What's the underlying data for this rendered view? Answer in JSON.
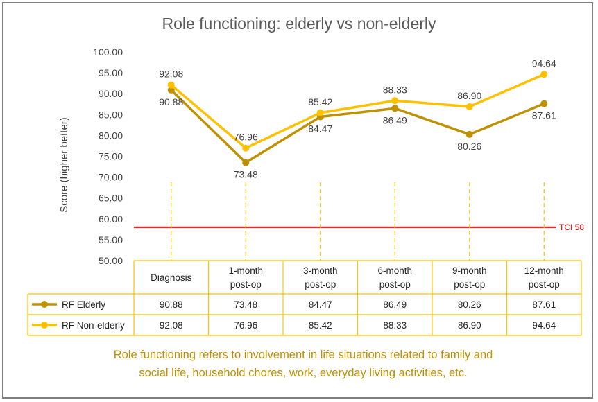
{
  "chart_data": {
    "type": "line",
    "title": "Role functioning: elderly vs non-elderly",
    "ylabel": "Score (higher better)",
    "ylim": [
      50,
      100
    ],
    "yticks": [
      "50.00",
      "55.00",
      "60.00",
      "65.00",
      "70.00",
      "75.00",
      "80.00",
      "85.00",
      "90.00",
      "95.00",
      "100.00"
    ],
    "categories": [
      [
        "Diagnosis"
      ],
      [
        "1-month",
        "post-op"
      ],
      [
        "3-month",
        "post-op"
      ],
      [
        "6-month",
        "post-op"
      ],
      [
        "9-month",
        "post-op"
      ],
      [
        "12-month",
        "post-op"
      ]
    ],
    "series": [
      {
        "name": "RF Elderly",
        "color": "#bf9000",
        "values": [
          90.88,
          73.48,
          84.47,
          86.49,
          80.26,
          87.61
        ],
        "labels": [
          "90.88",
          "73.48",
          "84.47",
          "86.49",
          "80.26",
          "87.61"
        ]
      },
      {
        "name": "RF Non-elderly",
        "color": "#ffc000",
        "values": [
          92.08,
          76.96,
          85.42,
          88.33,
          86.9,
          94.64
        ],
        "labels": [
          "92.08",
          "76.96",
          "85.42",
          "88.33",
          "86.90",
          "94.64"
        ]
      }
    ],
    "reference_line": {
      "value": 58,
      "label": "TCI 58",
      "color": "#ff0000"
    },
    "data_table": true,
    "grid": false
  },
  "caption": {
    "line1": "Role functioning refers to involvement in life situations related to family and",
    "line2": "social life, household chores, work, everyday living activities, etc."
  }
}
